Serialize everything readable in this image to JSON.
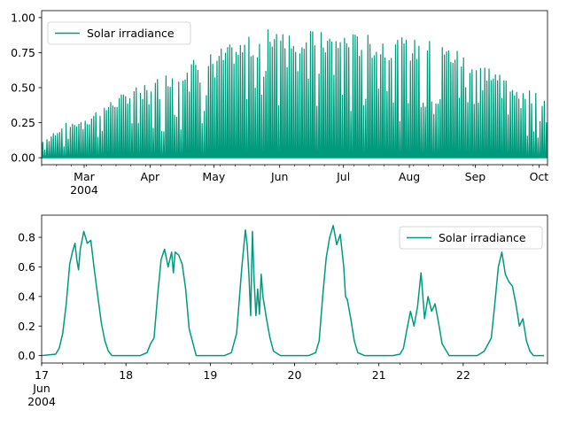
{
  "chart_data": [
    {
      "type": "area",
      "series": [
        {
          "name": "Solar irradiance",
          "color": "#009b7d",
          "daily_peak_x": [
            "2004-02-10",
            "2004-02-20",
            "2004-03-01",
            "2004-03-10",
            "2004-03-20",
            "2004-04-01",
            "2004-04-10",
            "2004-04-20",
            "2004-05-01",
            "2004-05-10",
            "2004-05-20",
            "2004-06-01",
            "2004-06-10",
            "2004-06-20",
            "2004-07-01",
            "2004-07-10",
            "2004-07-20",
            "2004-08-01",
            "2004-08-10",
            "2004-08-20",
            "2004-09-01",
            "2004-09-10",
            "2004-09-20",
            "2004-10-01",
            "2004-10-05"
          ],
          "daily_peak_y": [
            0.12,
            0.24,
            0.3,
            0.38,
            0.47,
            0.55,
            0.62,
            0.7,
            0.76,
            0.82,
            0.88,
            0.98,
            0.92,
            0.9,
            0.9,
            0.88,
            0.87,
            0.85,
            0.84,
            0.8,
            0.72,
            0.63,
            0.55,
            0.44,
            0.46
          ]
        }
      ],
      "x_range": [
        "2004-02-10",
        "2004-10-05"
      ],
      "ylim": [
        -0.05,
        1.05
      ],
      "xticks": [
        {
          "date": "2004-03-01",
          "label": "Mar",
          "sublabel": "2004"
        },
        {
          "date": "2004-04-01",
          "label": "Apr"
        },
        {
          "date": "2004-05-01",
          "label": "May"
        },
        {
          "date": "2004-06-01",
          "label": "Jun"
        },
        {
          "date": "2004-07-01",
          "label": "Jul"
        },
        {
          "date": "2004-08-01",
          "label": "Aug"
        },
        {
          "date": "2004-09-01",
          "label": "Sep"
        },
        {
          "date": "2004-10-01",
          "label": "Oct"
        }
      ],
      "yticks": [
        {
          "value": 0.0,
          "label": "0.00"
        },
        {
          "value": 0.25,
          "label": "0.25"
        },
        {
          "value": 0.5,
          "label": "0.50"
        },
        {
          "value": 0.75,
          "label": "0.75"
        },
        {
          "value": 1.0,
          "label": "1.00"
        }
      ],
      "legend": {
        "label": "Solar irradiance",
        "position": "upper-left"
      },
      "grid": false
    },
    {
      "type": "line",
      "series": [
        {
          "name": "Solar irradiance",
          "color": "#009b7d",
          "x": [
            "2004-06-17 00:00",
            "2004-06-17 04:00",
            "2004-06-17 05:00",
            "2004-06-17 06:00",
            "2004-06-17 07:00",
            "2004-06-17 08:00",
            "2004-06-17 08:45",
            "2004-06-17 09:30",
            "2004-06-17 10:00",
            "2004-06-17 10:30",
            "2004-06-17 11:00",
            "2004-06-17 12:00",
            "2004-06-17 13:00",
            "2004-06-17 14:00",
            "2004-06-17 15:00",
            "2004-06-17 16:00",
            "2004-06-17 17:00",
            "2004-06-17 18:00",
            "2004-06-17 19:00",
            "2004-06-17 20:00",
            "2004-06-18 04:00",
            "2004-06-18 06:00",
            "2004-06-18 07:00",
            "2004-06-18 08:00",
            "2004-06-18 09:00",
            "2004-06-18 10:00",
            "2004-06-18 11:00",
            "2004-06-18 12:00",
            "2004-06-18 13:00",
            "2004-06-18 13:30",
            "2004-06-18 14:00",
            "2004-06-18 15:00",
            "2004-06-18 16:00",
            "2004-06-18 17:00",
            "2004-06-18 18:00",
            "2004-06-18 20:00",
            "2004-06-19 04:00",
            "2004-06-19 06:00",
            "2004-06-19 07:30",
            "2004-06-19 09:00",
            "2004-06-19 10:00",
            "2004-06-19 10:30",
            "2004-06-19 11:00",
            "2004-06-19 11:30",
            "2004-06-19 12:00",
            "2004-06-19 12:30",
            "2004-06-19 13:00",
            "2004-06-19 13:30",
            "2004-06-19 14:00",
            "2004-06-19 14:30",
            "2004-06-19 15:00",
            "2004-06-19 16:00",
            "2004-06-19 17:00",
            "2004-06-19 18:00",
            "2004-06-19 20:00",
            "2004-06-20 04:00",
            "2004-06-20 06:00",
            "2004-06-20 07:00",
            "2004-06-20 08:00",
            "2004-06-20 09:00",
            "2004-06-20 10:00",
            "2004-06-20 11:00",
            "2004-06-20 12:00",
            "2004-06-20 13:00",
            "2004-06-20 14:00",
            "2004-06-20 14:30",
            "2004-06-20 15:00",
            "2004-06-20 16:00",
            "2004-06-20 17:00",
            "2004-06-20 18:00",
            "2004-06-20 20:00",
            "2004-06-21 04:00",
            "2004-06-21 06:00",
            "2004-06-21 07:00",
            "2004-06-21 08:00",
            "2004-06-21 09:00",
            "2004-06-21 10:00",
            "2004-06-21 11:00",
            "2004-06-21 12:00",
            "2004-06-21 13:00",
            "2004-06-21 14:00",
            "2004-06-21 15:00",
            "2004-06-21 16:00",
            "2004-06-21 17:00",
            "2004-06-21 18:00",
            "2004-06-21 20:00",
            "2004-06-22 04:00",
            "2004-06-22 06:00",
            "2004-06-22 08:00",
            "2004-06-22 09:00",
            "2004-06-22 10:00",
            "2004-06-22 11:00",
            "2004-06-22 12:00",
            "2004-06-22 13:00",
            "2004-06-22 14:00",
            "2004-06-22 15:00",
            "2004-06-22 16:00",
            "2004-06-22 17:00",
            "2004-06-22 18:00",
            "2004-06-22 19:00",
            "2004-06-22 20:00",
            "2004-06-22 23:00"
          ],
          "y": [
            0.0,
            0.01,
            0.05,
            0.15,
            0.35,
            0.62,
            0.7,
            0.76,
            0.65,
            0.58,
            0.72,
            0.84,
            0.76,
            0.78,
            0.58,
            0.4,
            0.22,
            0.1,
            0.03,
            0.0,
            0.0,
            0.02,
            0.08,
            0.12,
            0.4,
            0.65,
            0.72,
            0.6,
            0.7,
            0.56,
            0.7,
            0.68,
            0.62,
            0.45,
            0.18,
            0.0,
            0.0,
            0.02,
            0.15,
            0.6,
            0.85,
            0.75,
            0.55,
            0.27,
            0.84,
            0.5,
            0.27,
            0.45,
            0.28,
            0.55,
            0.4,
            0.25,
            0.12,
            0.03,
            0.0,
            0.0,
            0.02,
            0.1,
            0.4,
            0.66,
            0.8,
            0.88,
            0.75,
            0.82,
            0.6,
            0.4,
            0.38,
            0.25,
            0.1,
            0.02,
            0.0,
            0.0,
            0.01,
            0.05,
            0.18,
            0.3,
            0.2,
            0.33,
            0.56,
            0.25,
            0.4,
            0.3,
            0.35,
            0.22,
            0.08,
            0.0,
            0.0,
            0.03,
            0.12,
            0.35,
            0.6,
            0.7,
            0.55,
            0.5,
            0.47,
            0.35,
            0.2,
            0.25,
            0.1,
            0.03,
            0.0,
            0.0
          ]
        }
      ],
      "x_range": [
        "2004-06-17 00:00",
        "2004-06-23 00:00"
      ],
      "ylim": [
        -0.05,
        0.95
      ],
      "xticks": [
        {
          "date": "2004-06-17 00:00",
          "label": "17",
          "sublabel": "Jun",
          "sublabel2": "2004"
        },
        {
          "date": "2004-06-18 00:00",
          "label": "18"
        },
        {
          "date": "2004-06-19 00:00",
          "label": "19"
        },
        {
          "date": "2004-06-20 00:00",
          "label": "20"
        },
        {
          "date": "2004-06-21 00:00",
          "label": "21"
        },
        {
          "date": "2004-06-22 00:00",
          "label": "22"
        }
      ],
      "yticks": [
        {
          "value": 0.0,
          "label": "0.0"
        },
        {
          "value": 0.2,
          "label": "0.2"
        },
        {
          "value": 0.4,
          "label": "0.4"
        },
        {
          "value": 0.6,
          "label": "0.6"
        },
        {
          "value": 0.8,
          "label": "0.8"
        }
      ],
      "legend": {
        "label": "Solar irradiance",
        "position": "upper-right"
      },
      "grid": false
    }
  ]
}
